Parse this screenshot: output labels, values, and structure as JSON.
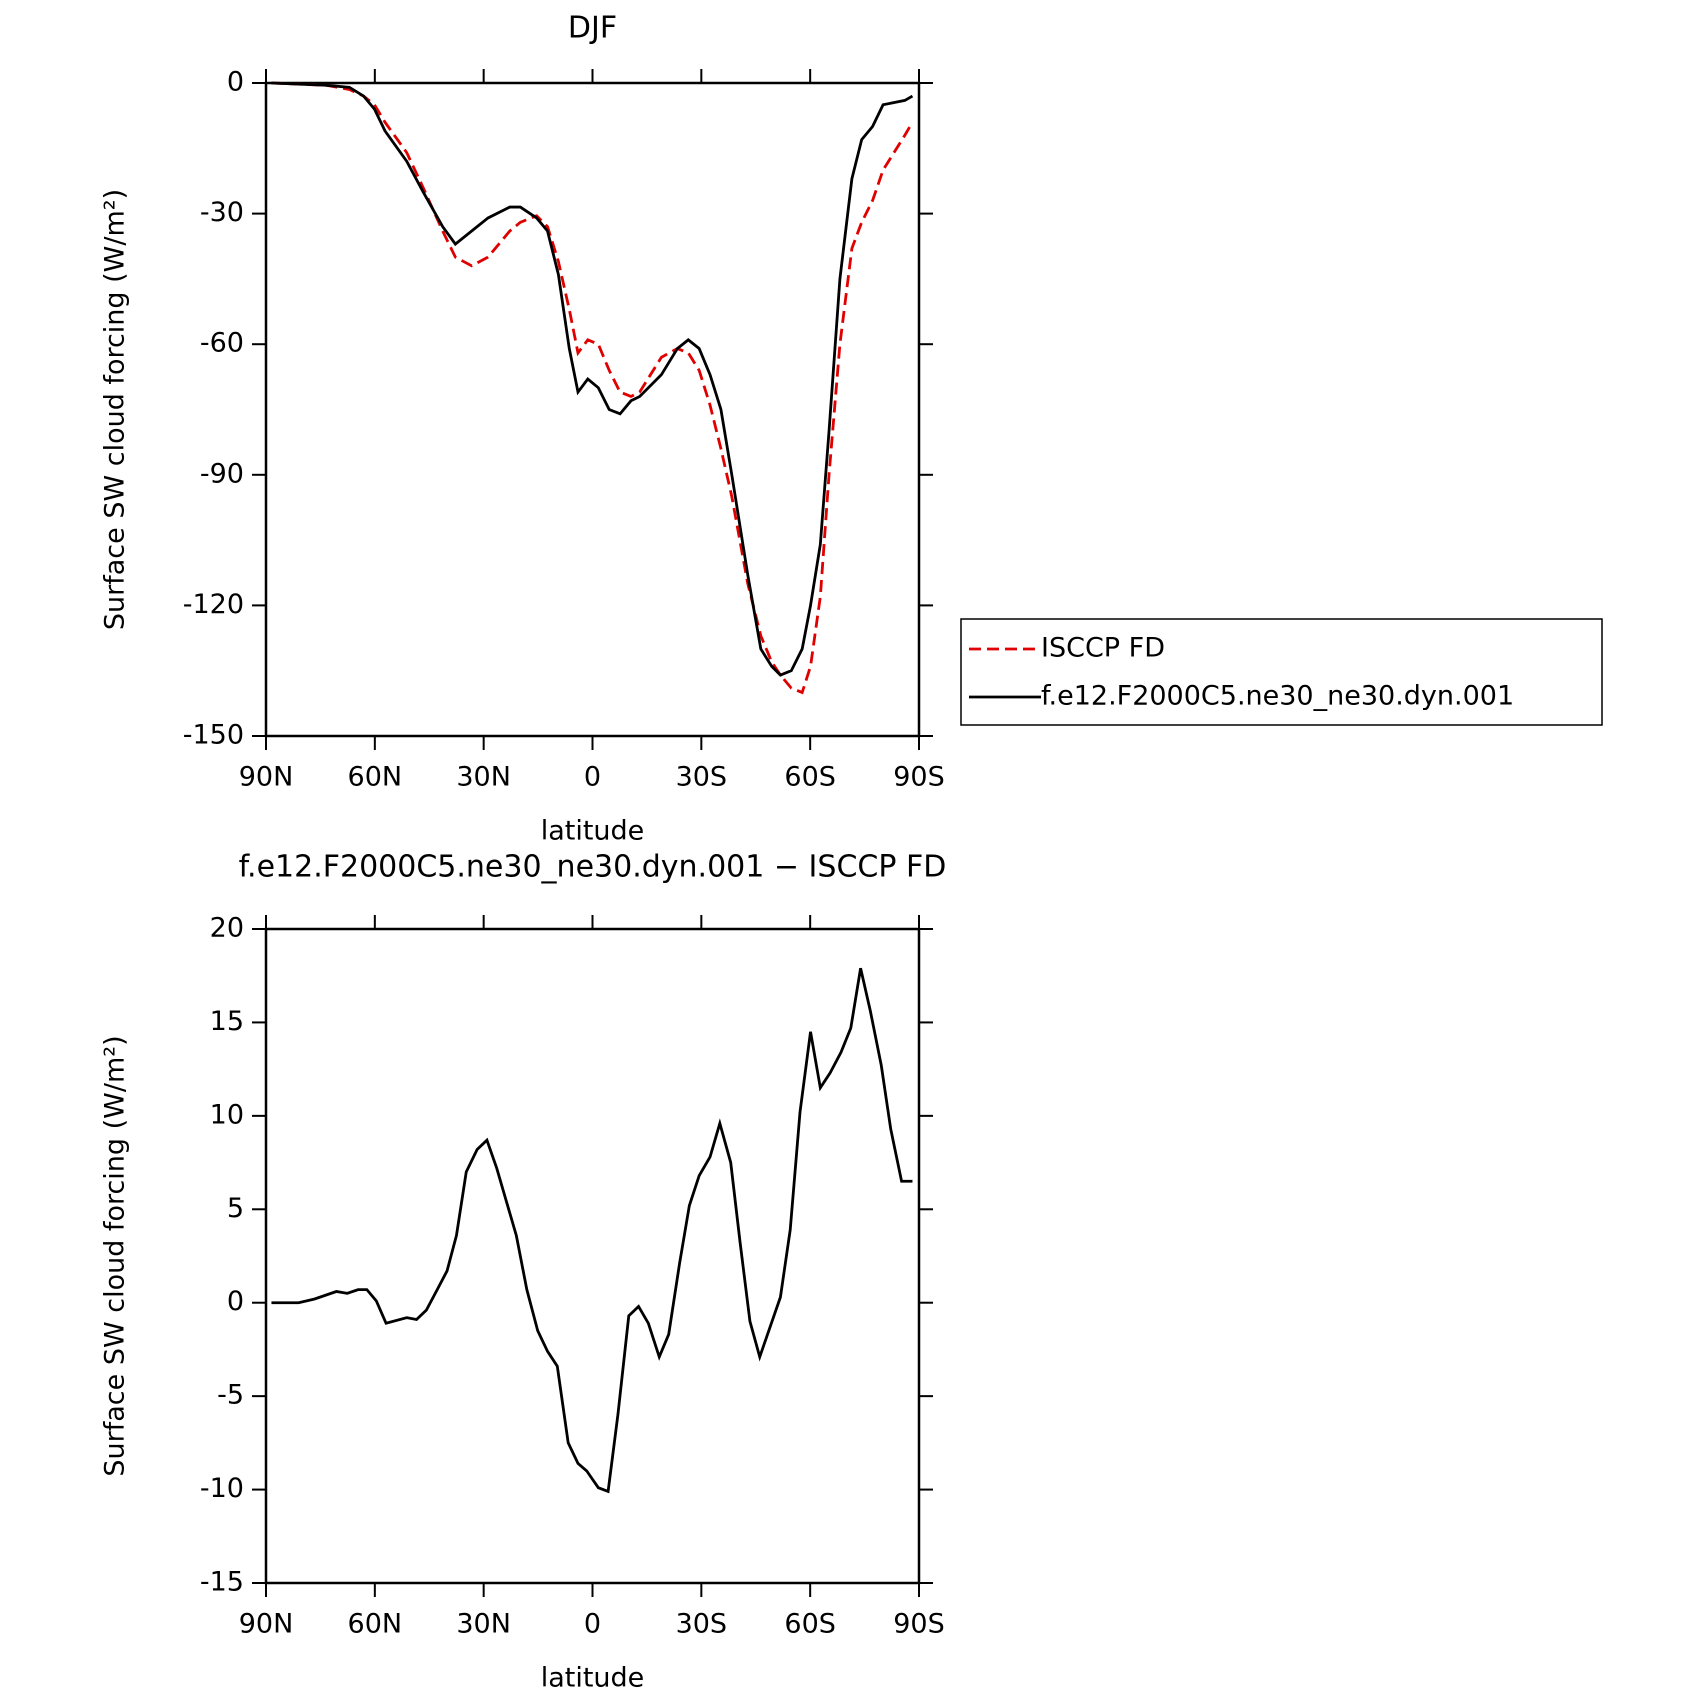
{
  "chart_data": [
    {
      "type": "line",
      "title": "DJF",
      "xlabel": "latitude",
      "ylabel": "Surface SW cloud forcing (W/m²)",
      "xlim": [
        90,
        -90
      ],
      "xticks": [
        {
          "value": 90,
          "label": "90N"
        },
        {
          "value": 60,
          "label": "60N"
        },
        {
          "value": 30,
          "label": "30N"
        },
        0,
        {
          "value": -30,
          "label": "30S"
        },
        {
          "value": -60,
          "label": "60S"
        },
        {
          "value": -90,
          "label": "90S"
        }
      ],
      "ylim": [
        -150,
        0
      ],
      "yticks": [
        0,
        -30,
        -60,
        -90,
        -120,
        -150
      ],
      "legend": "right",
      "x": [
        88.5,
        73.6,
        67.0,
        63.1,
        60.1,
        57.2,
        51.2,
        46.7,
        41.3,
        37.8,
        33.3,
        28.8,
        22.8,
        19.9,
        15.4,
        12.4,
        9.4,
        6.4,
        4.0,
        1.3,
        -1.6,
        -4.6,
        -7.6,
        -10.6,
        -13.0,
        -19.0,
        -23.4,
        -26.4,
        -29.4,
        -32.4,
        -35.4,
        -38.4,
        -42.8,
        -46.4,
        -49.4,
        -51.8,
        -54.8,
        -57.8,
        -60.1,
        -62.8,
        -65.2,
        -68.2,
        -71.5,
        -74.2,
        -77.2,
        -80.1,
        -86.1,
        -88.2
      ],
      "series": [
        {
          "name": "ISCCP FD",
          "color": "#e00000",
          "dash": true,
          "values": [
            0,
            -0.5,
            -1.5,
            -3,
            -5,
            -9,
            -16,
            -24,
            -34,
            -40,
            -42,
            -40,
            -34,
            -32,
            -30.5,
            -33,
            -41,
            -52,
            -62,
            -59,
            -60,
            -66,
            -71,
            -72,
            -71,
            -63,
            -61,
            -62,
            -66,
            -74,
            -84,
            -95,
            -115,
            -127,
            -133,
            -136,
            -139,
            -140,
            -134,
            -118,
            -90,
            -60,
            -38,
            -32,
            -27,
            -20,
            -12,
            -9
          ]
        },
        {
          "name": "f.e12.F2000C5.ne30_ne30.dyn.001",
          "color": "#000000",
          "dash": false,
          "values": [
            0,
            -0.5,
            -1,
            -3,
            -6,
            -11,
            -18,
            -25,
            -33,
            -37,
            -34,
            -31,
            -28.5,
            -28.5,
            -31,
            -34,
            -44,
            -61,
            -71,
            -68,
            -70,
            -75,
            -76,
            -73,
            -72,
            -67,
            -61,
            -59,
            -61,
            -67,
            -75,
            -90,
            -113,
            -130,
            -134,
            -136,
            -135,
            -130,
            -120,
            -106,
            -80,
            -45,
            -22,
            -13,
            -10,
            -5,
            -4,
            -3
          ]
        }
      ]
    },
    {
      "type": "line",
      "title": "f.e12.F2000C5.ne30_ne30.dyn.001 − ISCCP FD",
      "xlabel": "latitude",
      "ylabel": "Surface SW cloud forcing (W/m²)",
      "xlim": [
        90,
        -90
      ],
      "xticks": [
        {
          "value": 90,
          "label": "90N"
        },
        {
          "value": 60,
          "label": "60N"
        },
        {
          "value": 30,
          "label": "30N"
        },
        0,
        {
          "value": -30,
          "label": "30S"
        },
        {
          "value": -60,
          "label": "60S"
        },
        {
          "value": -90,
          "label": "90S"
        }
      ],
      "ylim": [
        -15,
        20
      ],
      "yticks": [
        20,
        15,
        10,
        5,
        0,
        -5,
        -10,
        -15
      ],
      "x": [
        88.5,
        81.0,
        76.6,
        70.6,
        67.6,
        64.6,
        62.2,
        59.6,
        56.9,
        51.2,
        48.5,
        45.8,
        42.8,
        40.1,
        37.5,
        34.8,
        31.8,
        29.1,
        26.4,
        21.0,
        18.1,
        15.1,
        12.4,
        9.7,
        6.7,
        4.0,
        1.6,
        -1.6,
        -4.3,
        -7.0,
        -10.0,
        -12.7,
        -15.4,
        -18.4,
        -21.0,
        -24.0,
        -26.7,
        -29.4,
        -32.4,
        -35.1,
        -38.1,
        -40.7,
        -43.4,
        -46.1,
        -51.8,
        -54.5,
        -57.2,
        -60.1,
        -62.8,
        -65.5,
        -68.5,
        -71.2,
        -73.9,
        -76.6,
        -79.6,
        -82.2,
        -85.2,
        -88.2
      ],
      "series": [
        {
          "color": "#000000",
          "dash": false,
          "values": [
            0,
            0,
            0.2,
            0.6,
            0.5,
            0.7,
            0.7,
            0.1,
            -1.1,
            -0.8,
            -0.9,
            -0.4,
            0.7,
            1.7,
            3.6,
            7.0,
            8.2,
            8.7,
            7.2,
            3.6,
            0.7,
            -1.5,
            -2.6,
            -3.4,
            -7.5,
            -8.6,
            -9.0,
            -9.9,
            -10.1,
            -6.0,
            -0.7,
            -0.2,
            -1.1,
            -2.9,
            -1.7,
            2.1,
            5.2,
            6.8,
            7.8,
            9.6,
            7.5,
            3.2,
            -1.0,
            -2.9,
            0.3,
            3.9,
            10.2,
            14.5,
            11.5,
            12.3,
            13.4,
            14.7,
            17.9,
            15.6,
            12.7,
            9.3,
            6.5,
            6.5
          ]
        }
      ]
    }
  ]
}
